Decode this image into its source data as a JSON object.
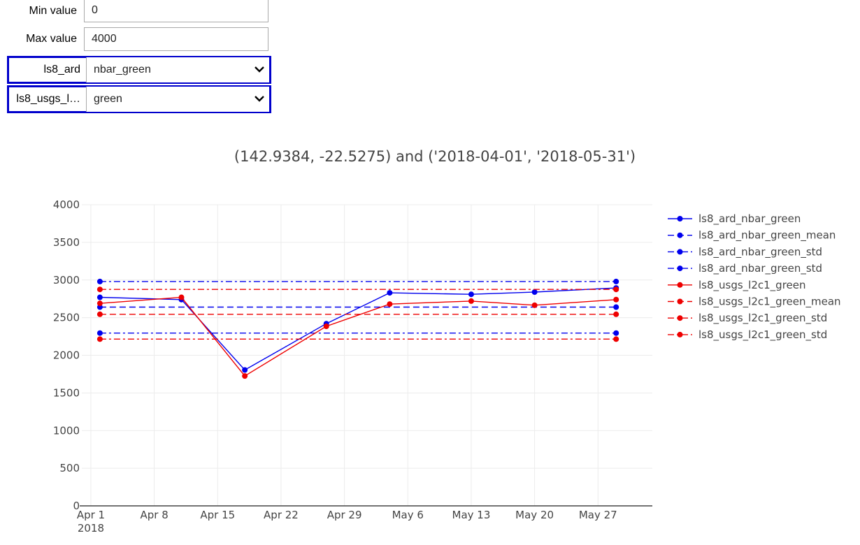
{
  "controls": {
    "min_label": "Min value",
    "min_value": "0",
    "max_label": "Max value",
    "max_value": "4000",
    "select1_label": "ls8_ard",
    "select1_value": "nbar_green",
    "select2_label": "ls8_usgs_l…",
    "select2_value": "green"
  },
  "chart_data": {
    "type": "line",
    "title": "(142.9384, -22.5275) and ('2018-04-01', '2018-05-31')",
    "xlabel": "",
    "ylabel": "",
    "ylim": [
      0,
      4000
    ],
    "xlim": [
      "2018-03-31",
      "2018-06-02"
    ],
    "y_ticks": [
      "0",
      "500",
      "1000",
      "1500",
      "2000",
      "2500",
      "3000",
      "3500",
      "4000"
    ],
    "x_ticks": [
      {
        "date": "2018-04-01",
        "label": "Apr 1",
        "sub": "2018"
      },
      {
        "date": "2018-04-08",
        "label": "Apr 8"
      },
      {
        "date": "2018-04-15",
        "label": "Apr 15"
      },
      {
        "date": "2018-04-22",
        "label": "Apr 22"
      },
      {
        "date": "2018-04-29",
        "label": "Apr 29"
      },
      {
        "date": "2018-05-06",
        "label": "May 6"
      },
      {
        "date": "2018-05-13",
        "label": "May 13"
      },
      {
        "date": "2018-05-20",
        "label": "May 20"
      },
      {
        "date": "2018-05-27",
        "label": "May 27"
      }
    ],
    "grid": true,
    "legend_position": "right",
    "series": [
      {
        "name": "ls8_ard_nbar_green",
        "color": "#0000ee",
        "dash": "solid",
        "x": [
          "2018-04-02",
          "2018-04-11",
          "2018-04-18",
          "2018-04-27",
          "2018-05-04",
          "2018-05-13",
          "2018-05-20",
          "2018-05-29"
        ],
        "y": [
          2770,
          2740,
          1805,
          2420,
          2830,
          2810,
          2840,
          2895
        ]
      },
      {
        "name": "ls8_ard_nbar_green_mean",
        "color": "#0000ee",
        "dash": "dash",
        "x": [
          "2018-04-02",
          "2018-05-29"
        ],
        "y": [
          2640,
          2640
        ]
      },
      {
        "name": "ls8_ard_nbar_green_std",
        "color": "#0000ee",
        "dash": "dashdot",
        "x": [
          "2018-04-02",
          "2018-05-29"
        ],
        "y": [
          2980,
          2980
        ]
      },
      {
        "name": "ls8_ard_nbar_green_std",
        "color": "#0000ee",
        "dash": "dashdot",
        "x": [
          "2018-04-02",
          "2018-05-29"
        ],
        "y": [
          2295,
          2295
        ]
      },
      {
        "name": "ls8_usgs_l2c1_green",
        "color": "#ee0000",
        "dash": "solid",
        "x": [
          "2018-04-02",
          "2018-04-11",
          "2018-04-18",
          "2018-04-27",
          "2018-05-04",
          "2018-05-13",
          "2018-05-20",
          "2018-05-29"
        ],
        "y": [
          2690,
          2770,
          1725,
          2385,
          2680,
          2720,
          2665,
          2740
        ]
      },
      {
        "name": "ls8_usgs_l2c1_green_mean",
        "color": "#ee0000",
        "dash": "dash",
        "x": [
          "2018-04-02",
          "2018-05-29"
        ],
        "y": [
          2545,
          2545
        ]
      },
      {
        "name": "ls8_usgs_l2c1_green_std",
        "color": "#ee0000",
        "dash": "dashdot",
        "x": [
          "2018-04-02",
          "2018-05-29"
        ],
        "y": [
          2875,
          2875
        ]
      },
      {
        "name": "ls8_usgs_l2c1_green_std",
        "color": "#ee0000",
        "dash": "dashdot",
        "x": [
          "2018-04-02",
          "2018-05-29"
        ],
        "y": [
          2215,
          2215
        ]
      }
    ]
  }
}
